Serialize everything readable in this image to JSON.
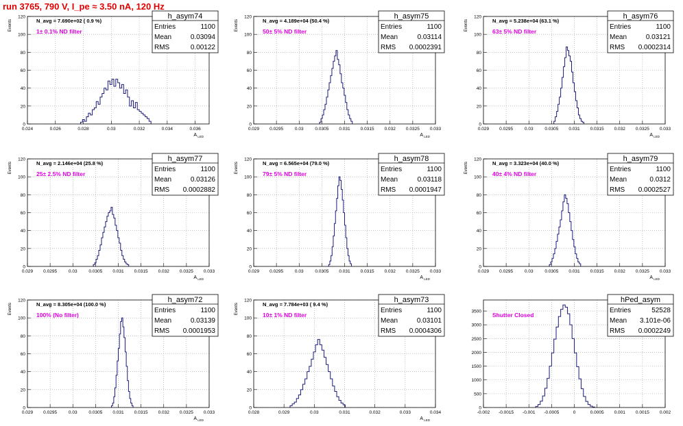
{
  "run_title": "run 3765,   790 V, I_pe ≈ 3.50 nA, 120 Hz",
  "colors": {
    "histogram": "#1a1a7a",
    "title": "#e00000",
    "label": "#e000e0",
    "grid": "#9a9a9a"
  },
  "stats_labels": {
    "entries": "Entries",
    "mean": "Mean",
    "rms": "RMS"
  },
  "chart_data": [
    {
      "type": "bar",
      "name": "h_asym74",
      "navg": "N_avg = 7.690e+02 ( 0.9 %)",
      "filter": "1± 0.1% ND filter",
      "entries": "1100",
      "mean": "0.03094",
      "rms": "0.00122",
      "ylabel": "Events",
      "xlabel": "A",
      "x_ticks": [
        "0.024",
        "0.026",
        "0.028",
        "0.03",
        "0.032",
        "0.034",
        "0.036"
      ],
      "y_ticks": [
        "0",
        "20",
        "40",
        "60",
        "80",
        "100",
        "120"
      ],
      "xlim": [
        0.024,
        0.037
      ],
      "ylim": [
        0,
        120
      ],
      "bins": {
        "start": 0.0278,
        "width": 0.00014,
        "counts": [
          2,
          5,
          3,
          8,
          12,
          10,
          16,
          18,
          25,
          22,
          30,
          34,
          40,
          38,
          48,
          44,
          50,
          42,
          50,
          46,
          40,
          44,
          34,
          38,
          30,
          20,
          26,
          18,
          24,
          16,
          14,
          12,
          10,
          8,
          6,
          3
        ]
      }
    },
    {
      "type": "bar",
      "name": "h_asym75",
      "navg": "N_avg = 4.189e+04 (50.4 %)",
      "filter": "50± 5% ND filter",
      "entries": "1100",
      "mean": "0.03114",
      "rms": "0.0002391",
      "ylabel": "Events",
      "xlabel": "A",
      "x_ticks": [
        "0.029",
        "0.0295",
        "0.03",
        "0.0305",
        "0.031",
        "0.0315",
        "0.032",
        "0.0325",
        "0.033"
      ],
      "y_ticks": [
        "0",
        "20",
        "40",
        "60",
        "80",
        "100",
        "120"
      ],
      "xlim": [
        0.029,
        0.033
      ],
      "ylim": [
        0,
        120
      ],
      "bins": {
        "start": 0.03045,
        "width": 3e-05,
        "counts": [
          2,
          6,
          10,
          16,
          22,
          30,
          38,
          46,
          54,
          62,
          70,
          76,
          82,
          72,
          66,
          56,
          46,
          40,
          32,
          24,
          16,
          10,
          6,
          3
        ]
      }
    },
    {
      "type": "bar",
      "name": "h_asym76",
      "navg": "N_avg = 5.238e+04 (63.1 %)",
      "filter": "63± 5% ND filter",
      "entries": "1100",
      "mean": "0.03121",
      "rms": "0.0002314",
      "ylabel": "Events",
      "xlabel": "A",
      "x_ticks": [
        "0.029",
        "0.0295",
        "0.03",
        "0.0305",
        "0.031",
        "0.0315",
        "0.032",
        "0.0325",
        "0.033"
      ],
      "y_ticks": [
        "0",
        "20",
        "40",
        "60",
        "80",
        "100",
        "120"
      ],
      "xlim": [
        0.029,
        0.033
      ],
      "ylim": [
        0,
        120
      ],
      "bins": {
        "start": 0.03055,
        "width": 3e-05,
        "counts": [
          3,
          8,
          14,
          22,
          30,
          40,
          52,
          64,
          74,
          86,
          82,
          76,
          70,
          58,
          46,
          36,
          26,
          18,
          10,
          6,
          3,
          2
        ]
      }
    },
    {
      "type": "bar",
      "name": "h_asym77",
      "navg": "N_avg = 2.146e+04 (25.8 %)",
      "filter": "25± 2.5% ND filter",
      "entries": "1100",
      "mean": "0.03126",
      "rms": "0.0002882",
      "ylabel": "Events",
      "xlabel": "A",
      "x_ticks": [
        "0.029",
        "0.0295",
        "0.03",
        "0.0305",
        "0.031",
        "0.0315",
        "0.032",
        "0.0325",
        "0.033"
      ],
      "y_ticks": [
        "0",
        "20",
        "40",
        "60",
        "80",
        "100",
        "120"
      ],
      "xlim": [
        0.029,
        0.033
      ],
      "ylim": [
        0,
        120
      ],
      "bins": {
        "start": 0.03045,
        "width": 3e-05,
        "counts": [
          2,
          4,
          8,
          12,
          18,
          24,
          32,
          38,
          44,
          50,
          56,
          60,
          62,
          66,
          58,
          54,
          46,
          40,
          32,
          26,
          18,
          12,
          8,
          5,
          3,
          2
        ]
      }
    },
    {
      "type": "bar",
      "name": "h_asym78",
      "navg": "N_avg = 6.565e+04 (79.0 %)",
      "filter": "79± 5% ND filter",
      "entries": "1100",
      "mean": "0.03118",
      "rms": "0.0001947",
      "ylabel": "Events",
      "xlabel": "A",
      "x_ticks": [
        "0.029",
        "0.0295",
        "0.03",
        "0.0305",
        "0.031",
        "0.0315",
        "0.032",
        "0.0325",
        "0.033"
      ],
      "y_ticks": [
        "0",
        "20",
        "40",
        "60",
        "80",
        "100",
        "120"
      ],
      "xlim": [
        0.029,
        0.033
      ],
      "ylim": [
        0,
        120
      ],
      "bins": {
        "start": 0.03065,
        "width": 2.5e-05,
        "counts": [
          2,
          6,
          12,
          22,
          34,
          48,
          62,
          76,
          90,
          100,
          96,
          86,
          74,
          60,
          46,
          32,
          20,
          12,
          6,
          3
        ]
      }
    },
    {
      "type": "bar",
      "name": "h_asym79",
      "navg": "N_avg = 3.323e+04 (40.0 %)",
      "filter": "40± 4% ND filter",
      "entries": "1100",
      "mean": "0.0312",
      "rms": "0.0002527",
      "ylabel": "Events",
      "xlabel": "A",
      "x_ticks": [
        "0.029",
        "0.0295",
        "0.03",
        "0.0305",
        "0.031",
        "0.0315",
        "0.032",
        "0.0325",
        "0.033"
      ],
      "y_ticks": [
        "0",
        "20",
        "40",
        "60",
        "80",
        "100",
        "120"
      ],
      "xlim": [
        0.029,
        0.033
      ],
      "ylim": [
        0,
        120
      ],
      "bins": {
        "start": 0.03045,
        "width": 3e-05,
        "counts": [
          2,
          5,
          9,
          14,
          20,
          28,
          36,
          44,
          52,
          62,
          72,
          80,
          76,
          70,
          60,
          50,
          40,
          30,
          22,
          14,
          9,
          5,
          3
        ]
      }
    },
    {
      "type": "bar",
      "name": "h_asym72",
      "navg": "N_avg = 8.305e+04 (100.0 %)",
      "filter": "100% (No filter)",
      "entries": "1100",
      "mean": "0.03139",
      "rms": "0.0001953",
      "ylabel": "Events",
      "xlabel": "A",
      "x_ticks": [
        "0.029",
        "0.0295",
        "0.03",
        "0.0305",
        "0.031",
        "0.0315",
        "0.032",
        "0.0325",
        "0.033"
      ],
      "y_ticks": [
        "0",
        "20",
        "40",
        "60",
        "80",
        "100",
        "120"
      ],
      "xlim": [
        0.029,
        0.033
      ],
      "ylim": [
        0,
        120
      ],
      "bins": {
        "start": 0.03085,
        "width": 2.5e-05,
        "counts": [
          2,
          5,
          12,
          22,
          36,
          52,
          66,
          82,
          96,
          100,
          90,
          78,
          62,
          46,
          30,
          18,
          10,
          5,
          2
        ]
      }
    },
    {
      "type": "bar",
      "name": "h_asym73",
      "navg": "N_avg = 7.784e+03 ( 9.4 %)",
      "filter": "10± 1% ND filter",
      "entries": "1100",
      "mean": "0.03101",
      "rms": "0.0004306",
      "ylabel": "Events",
      "xlabel": "A",
      "x_ticks": [
        "0.028",
        "0.029",
        "0.03",
        "0.031",
        "0.032",
        "0.033",
        "0.034"
      ],
      "y_ticks": [
        "0",
        "20",
        "40",
        "60",
        "80",
        "100",
        "120"
      ],
      "xlim": [
        0.028,
        0.034
      ],
      "ylim": [
        0,
        120
      ],
      "bins": {
        "start": 0.0292,
        "width": 7e-05,
        "counts": [
          2,
          4,
          6,
          10,
          14,
          20,
          26,
          32,
          40,
          46,
          54,
          62,
          70,
          76,
          70,
          64,
          56,
          48,
          40,
          32,
          24,
          18,
          12,
          8,
          5,
          3
        ]
      }
    },
    {
      "type": "bar",
      "name": "hPed_asym",
      "navg": "",
      "filter": "Shutter Closed",
      "entries": "52528",
      "mean": "3.101e-06",
      "rms": "0.0002249",
      "ylabel": "",
      "xlabel": "",
      "x_ticks": [
        "-0.002",
        "-0.0015",
        "-0.001",
        "-0.0005",
        "0",
        "0.0005",
        "0.001",
        "0.0015",
        "0.002"
      ],
      "y_ticks": [
        "0",
        "500",
        "1000",
        "1500",
        "2000",
        "2500",
        "3000",
        "3500"
      ],
      "xlim": [
        -0.002,
        0.002
      ],
      "ylim": [
        0,
        3900
      ],
      "bins": {
        "start": -0.00085,
        "width": 5e-05,
        "counts": [
          40,
          110,
          230,
          420,
          700,
          1060,
          1500,
          1980,
          2480,
          2920,
          3300,
          3560,
          3720,
          3640,
          3400,
          3000,
          2500,
          1980,
          1480,
          1040,
          680,
          400,
          220,
          110,
          50,
          20
        ]
      }
    }
  ]
}
